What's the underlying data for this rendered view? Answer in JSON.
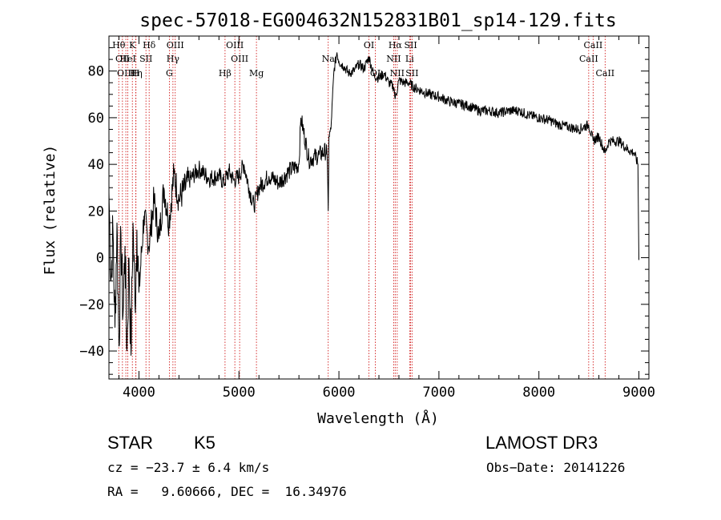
{
  "chart_data": {
    "type": "line",
    "title": "spec-57018-EG004632N152831B01_sp14-129.fits",
    "xlabel": "Wavelength (Å)",
    "ylabel": "Flux (relative)",
    "xlim": [
      3700,
      9100
    ],
    "ylim": [
      -52,
      95
    ],
    "xticks": [
      4000,
      5000,
      6000,
      7000,
      8000,
      9000
    ],
    "xtick_labels": [
      "4000",
      "5000",
      "6000",
      "7000",
      "8000",
      "9000"
    ],
    "yticks": [
      -40,
      -20,
      0,
      20,
      40,
      60,
      80
    ],
    "ytick_labels": [
      "−40",
      "−20",
      "0",
      "20",
      "40",
      "60",
      "80"
    ],
    "x_minor_step": 200,
    "y_minor_step": 5,
    "grid": false,
    "legend": "none",
    "line_color": "#000000",
    "marker_color": "#cc0000",
    "spectrum": {
      "x": [
        3700,
        3720,
        3740,
        3760,
        3780,
        3800,
        3820,
        3840,
        3860,
        3880,
        3900,
        3920,
        3940,
        3960,
        3980,
        4000,
        4050,
        4100,
        4150,
        4200,
        4250,
        4300,
        4350,
        4400,
        4500,
        4600,
        4700,
        4800,
        4850,
        4900,
        4950,
        5000,
        5050,
        5100,
        5150,
        5180,
        5200,
        5300,
        5400,
        5500,
        5600,
        5620,
        5700,
        5800,
        5880,
        5893,
        5900,
        5920,
        5950,
        5980,
        6000,
        6050,
        6100,
        6150,
        6200,
        6250,
        6300,
        6350,
        6400,
        6450,
        6500,
        6550,
        6563,
        6600,
        6650,
        6700,
        6750,
        6800,
        6900,
        7000,
        7100,
        7200,
        7300,
        7400,
        7500,
        7600,
        7700,
        7800,
        7900,
        8000,
        8100,
        8200,
        8300,
        8400,
        8498,
        8542,
        8600,
        8662,
        8700,
        8800,
        8900,
        8950,
        8990,
        9000
      ],
      "y": [
        28,
        -10,
        12,
        -30,
        15,
        -38,
        10,
        -25,
        5,
        -40,
        0,
        -42,
        15,
        -20,
        12,
        -15,
        18,
        5,
        25,
        8,
        30,
        15,
        36,
        25,
        33,
        38,
        34,
        35,
        32,
        37,
        33,
        35,
        40,
        30,
        22,
        27,
        30,
        35,
        32,
        37,
        40,
        60,
        42,
        44,
        46,
        20,
        52,
        55,
        80,
        88,
        84,
        82,
        79,
        80,
        83,
        81,
        86,
        78,
        77,
        79,
        75,
        73,
        68,
        76,
        75,
        75,
        73,
        72,
        70,
        69,
        67,
        66,
        65,
        63,
        63,
        62,
        63,
        63,
        61,
        60,
        59,
        57,
        56,
        55,
        57,
        50,
        52,
        45,
        50,
        50,
        46,
        45,
        40,
        -1
      ]
    },
    "lines": [
      {
        "wl": 3798,
        "name": "Hθ",
        "row": 0
      },
      {
        "wl": 3835,
        "name": "OII",
        "row": 1
      },
      {
        "wl": 3869,
        "name": "OIII",
        "row": 2
      },
      {
        "wl": 3889,
        "name": "HeI",
        "row": 1
      },
      {
        "wl": 3934,
        "name": "K",
        "row": 0
      },
      {
        "wl": 3969,
        "name": "H",
        "row": 2
      },
      {
        "wl": 3970,
        "name": "Hη",
        "row": 2
      },
      {
        "wl": 4070,
        "name": "SII",
        "row": 1
      },
      {
        "wl": 4102,
        "name": "Hδ",
        "row": 0
      },
      {
        "wl": 4304,
        "name": "G",
        "row": 2
      },
      {
        "wl": 4340,
        "name": "Hγ",
        "row": 1
      },
      {
        "wl": 4363,
        "name": "OIII",
        "row": 0
      },
      {
        "wl": 4861,
        "name": "Hβ",
        "row": 2
      },
      {
        "wl": 4959,
        "name": "OIII",
        "row": 0
      },
      {
        "wl": 5007,
        "name": "OIII",
        "row": 1
      },
      {
        "wl": 5175,
        "name": "Mg",
        "row": 2
      },
      {
        "wl": 5893,
        "name": "Na",
        "row": 1
      },
      {
        "wl": 6300,
        "name": "OI",
        "row": 0
      },
      {
        "wl": 6364,
        "name": "OI",
        "row": 2
      },
      {
        "wl": 6548,
        "name": "NII",
        "row": 1
      },
      {
        "wl": 6563,
        "name": "Hα",
        "row": 0
      },
      {
        "wl": 6583,
        "name": "NII",
        "row": 2
      },
      {
        "wl": 6707,
        "name": "Li",
        "row": 1
      },
      {
        "wl": 6717,
        "name": "SII",
        "row": 0
      },
      {
        "wl": 6731,
        "name": "SII",
        "row": 2
      },
      {
        "wl": 8498,
        "name": "CaII",
        "row": 1
      },
      {
        "wl": 8542,
        "name": "CaII",
        "row": 0
      },
      {
        "wl": 8662,
        "name": "CaII",
        "row": 2
      }
    ]
  },
  "info": {
    "classification": "STAR",
    "subclass": "K5",
    "survey": "LAMOST DR3",
    "cz": "cz = −23.7 ± 6.4 km/s",
    "obs_date": "Obs−Date: 20141226",
    "coords": "RA =   9.60666, DEC =  16.34976"
  }
}
